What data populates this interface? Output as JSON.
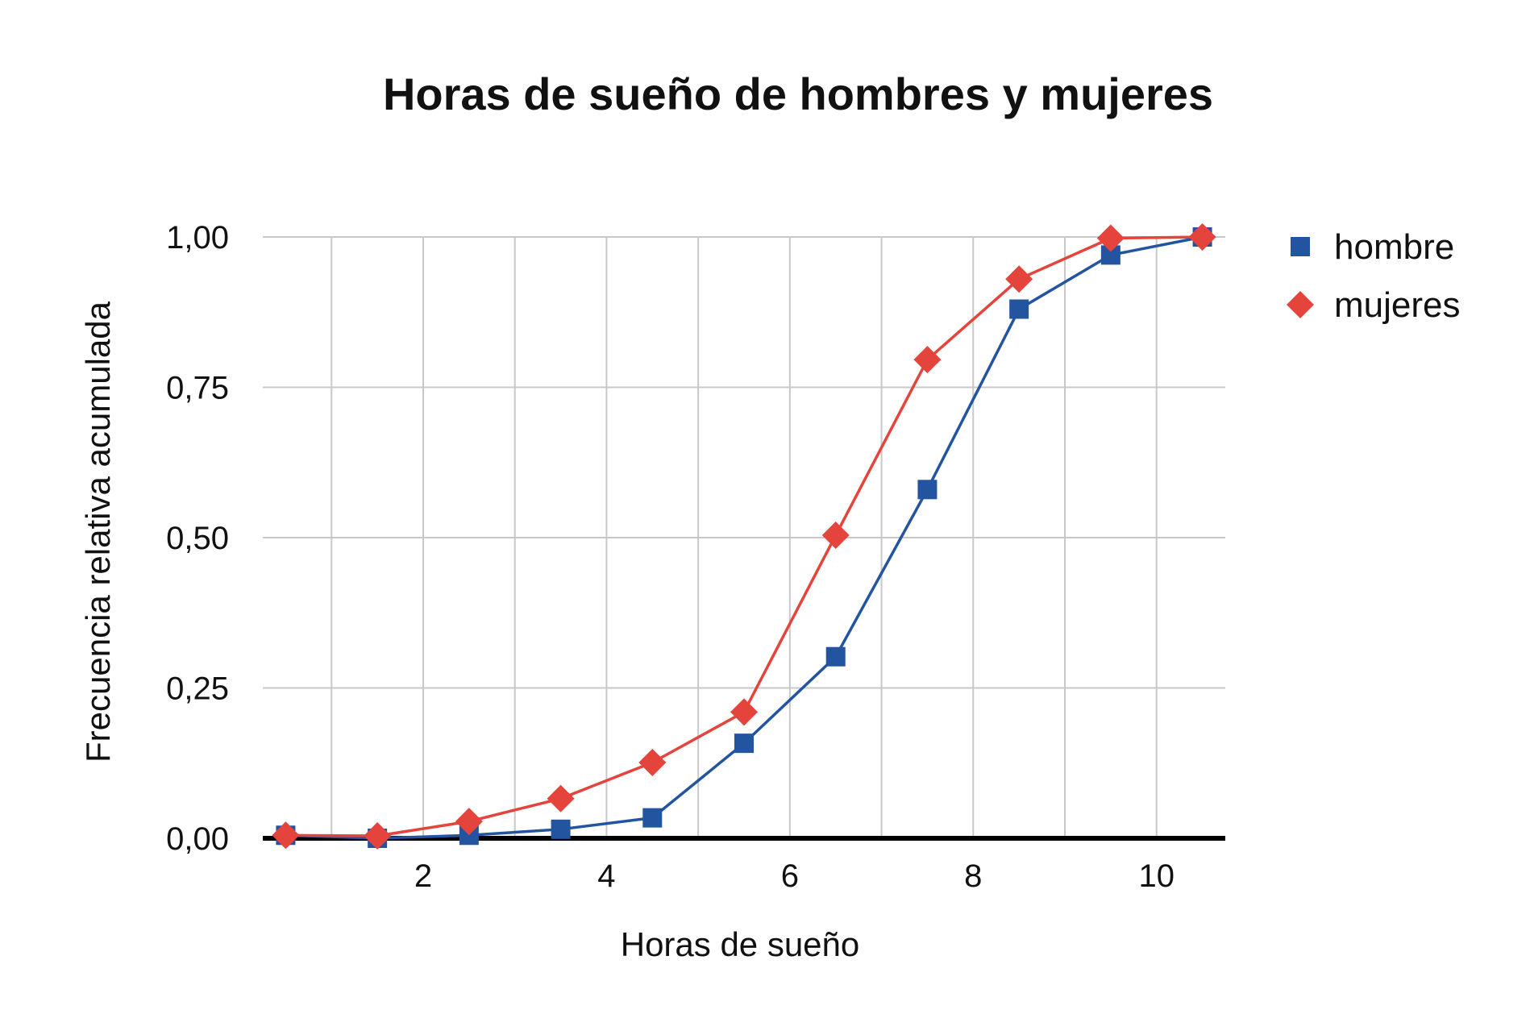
{
  "chart_data": {
    "type": "line",
    "title": "Horas de sueño de hombres y mujeres",
    "xlabel": "Horas de sueño",
    "ylabel": "Frecuencia relativa acumulada",
    "xlim": [
      0.25,
      10.75
    ],
    "ylim": [
      0,
      1
    ],
    "x_ticks": [
      2,
      4,
      6,
      8,
      10
    ],
    "x_tick_labels": [
      "2",
      "4",
      "6",
      "8",
      "10"
    ],
    "y_ticks": [
      0,
      0.25,
      0.5,
      0.75,
      1.0
    ],
    "y_tick_labels": [
      "0,00",
      "0,25",
      "0,50",
      "0,75",
      "1,00"
    ],
    "x_gridlines": [
      1,
      2,
      3,
      4,
      5,
      6,
      7,
      8,
      9,
      10
    ],
    "grid": true,
    "legend_position": "right",
    "x": [
      0.5,
      1.5,
      2.5,
      3.5,
      4.5,
      5.5,
      6.5,
      7.5,
      8.5,
      9.5,
      10.5
    ],
    "series": [
      {
        "name": "hombre",
        "color": "#2354a0",
        "marker": "square",
        "values": [
          0.005,
          0.0,
          0.005,
          0.015,
          0.034,
          0.158,
          0.302,
          0.58,
          0.88,
          0.97,
          1.0
        ]
      },
      {
        "name": "mujeres",
        "color": "#e4443b",
        "marker": "diamond",
        "values": [
          0.005,
          0.004,
          0.028,
          0.066,
          0.126,
          0.21,
          0.504,
          0.796,
          0.93,
          0.998,
          1.0
        ]
      }
    ]
  }
}
